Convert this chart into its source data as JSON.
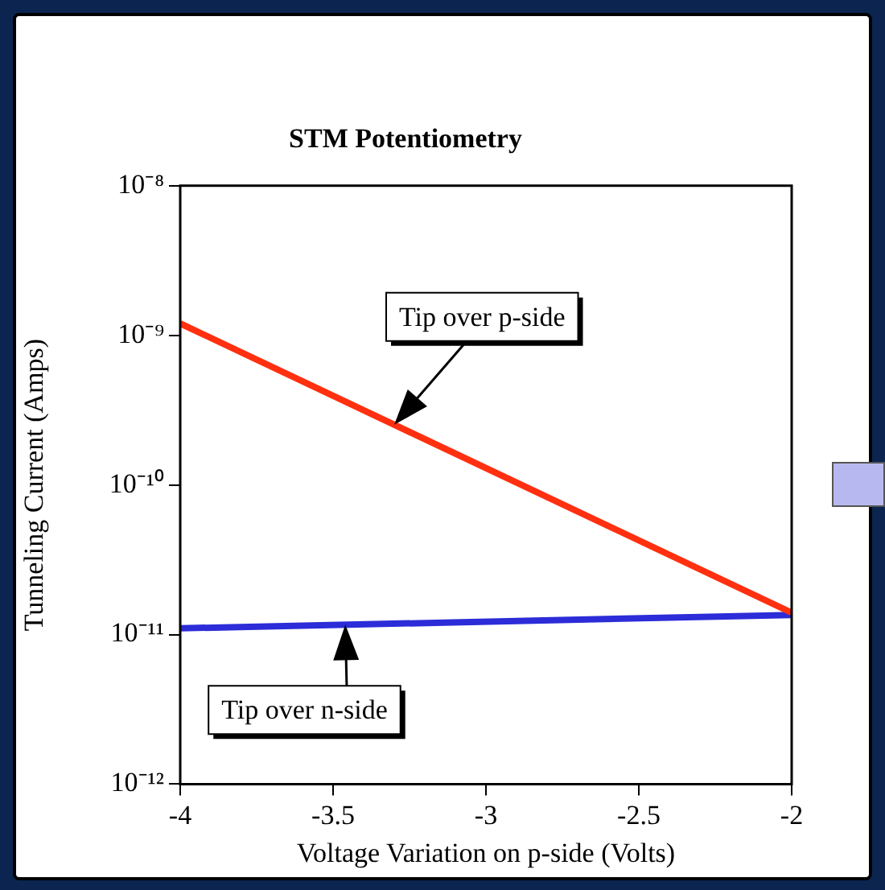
{
  "chart_data": {
    "type": "line",
    "title": "STM Potentiometry",
    "xlabel": "Voltage Variation on p-side (Volts)",
    "ylabel": "Tunneling Current (Amps)",
    "x": [
      -4,
      -2
    ],
    "series": [
      {
        "color": "#ff3010",
        "values": [
          1.2e-09,
          1.4e-11
        ]
      },
      {
        "color": "#2c2cd8",
        "values": [
          1.1e-11,
          1.35e-11
        ]
      }
    ],
    "log": "y",
    "xlim": [
      -4,
      -2
    ],
    "xticks": [
      -4,
      -3.5,
      -3,
      -2.5,
      -2
    ],
    "ylim": [
      1e-12,
      1e-08
    ],
    "yticks": [
      {
        "value": 1e-12,
        "label": "10⁻¹²"
      },
      {
        "value": 1e-11,
        "label": "10⁻¹¹"
      },
      {
        "value": 1e-10,
        "label": "10⁻¹⁰"
      },
      {
        "value": 1e-09,
        "label": "10⁻⁹"
      },
      {
        "value": 1e-08,
        "label": "10⁻⁸"
      }
    ],
    "grid": false,
    "legend": false,
    "marker": "none",
    "line_style": "solid",
    "annotations": [
      "Tip over p-side",
      "Tip over n-side"
    ]
  }
}
